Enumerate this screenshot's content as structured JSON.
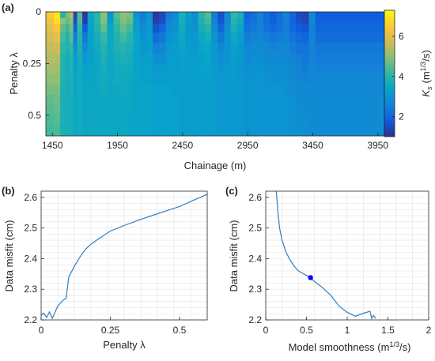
{
  "chart_data": [
    {
      "panel_label": "(a)",
      "type": "heatmap",
      "xlabel": "Chainage (m)",
      "ylabel": "Penalty λ",
      "xlim": [
        1400,
        4000
      ],
      "ylim": [
        0.6,
        0
      ],
      "x_ticks": [
        1450,
        1950,
        2450,
        2950,
        3450,
        3950
      ],
      "y_ticks": [
        0,
        0.25,
        0.5
      ],
      "colorbar": {
        "label": "K_s (m^1/3/s)",
        "label_main": "K",
        "label_sub": "s",
        "label_unit_open": "(m",
        "label_unit_sup": "1/3",
        "label_unit_close": "/s)",
        "ticks": [
          2,
          4,
          6
        ],
        "range": [
          1,
          7.3
        ],
        "colormap": "parula"
      },
      "column_edges": [
        1400,
        1460,
        1510,
        1550,
        1580,
        1610,
        1640,
        1680,
        1720,
        1770,
        1820,
        1870,
        1920,
        1970,
        2020,
        2070,
        2120,
        2170,
        2220,
        2270,
        2320,
        2370,
        2420,
        2470,
        2520,
        2570,
        2620,
        2670,
        2720,
        2770,
        2820,
        2870,
        2920,
        2970,
        3020,
        3070,
        3120,
        3170,
        3220,
        3270,
        3320,
        3370,
        3420,
        3470,
        4000
      ],
      "row_edges": [
        0,
        0.03,
        0.06,
        0.1,
        0.15,
        0.2,
        0.25,
        0.3,
        0.35,
        0.4,
        0.45,
        0.5,
        0.55,
        0.6
      ],
      "values": [
        [
          6.5,
          7.0,
          4.0,
          4.8,
          5.5,
          1.5,
          4.5,
          1.2,
          3.5,
          4.0,
          5.0,
          3.0,
          4.5,
          5.0,
          4.8,
          3.0,
          2.5,
          3.0,
          1.2,
          1.5,
          2.5,
          2.8,
          3.8,
          3.2,
          2.8,
          4.0,
          4.5,
          2.5,
          1.6,
          2.8,
          4.2,
          3.8,
          2.0,
          2.2,
          2.6,
          2.2,
          1.8,
          2.2,
          2.6,
          2.0,
          1.5,
          1.4,
          2.8,
          1.8
        ],
        [
          6.2,
          6.8,
          5.0,
          4.6,
          5.0,
          1.6,
          4.4,
          1.3,
          3.4,
          4.1,
          4.9,
          3.2,
          4.3,
          4.9,
          4.6,
          3.2,
          2.6,
          3.1,
          1.3,
          1.6,
          2.6,
          2.9,
          3.7,
          3.1,
          2.9,
          3.9,
          4.3,
          2.6,
          1.7,
          2.8,
          4.0,
          3.6,
          2.1,
          2.3,
          2.5,
          2.2,
          1.9,
          2.2,
          2.5,
          2.0,
          1.6,
          1.5,
          2.7,
          1.9
        ],
        [
          6.0,
          6.4,
          4.6,
          4.2,
          4.8,
          2.0,
          4.2,
          1.8,
          3.3,
          3.9,
          4.6,
          3.4,
          4.1,
          4.6,
          4.3,
          3.3,
          2.8,
          3.1,
          1.7,
          2.0,
          2.8,
          3.0,
          3.6,
          3.1,
          3.0,
          3.7,
          4.0,
          2.8,
          2.0,
          2.9,
          3.8,
          3.4,
          2.3,
          2.4,
          2.6,
          2.3,
          2.1,
          2.3,
          2.5,
          2.1,
          1.8,
          1.7,
          2.6,
          2.0
        ],
        [
          5.8,
          6.0,
          4.3,
          3.9,
          4.5,
          2.5,
          4.0,
          2.4,
          3.3,
          3.7,
          4.2,
          3.5,
          3.9,
          4.3,
          4.0,
          3.4,
          3.0,
          3.2,
          2.2,
          2.4,
          3.0,
          3.1,
          3.5,
          3.1,
          3.1,
          3.5,
          3.7,
          3.0,
          2.4,
          3.0,
          3.5,
          3.2,
          2.5,
          2.6,
          2.7,
          2.5,
          2.4,
          2.5,
          2.6,
          2.3,
          2.1,
          2.0,
          2.6,
          2.2
        ],
        [
          5.6,
          5.7,
          4.1,
          3.8,
          4.2,
          2.9,
          3.8,
          2.8,
          3.3,
          3.6,
          4.0,
          3.5,
          3.8,
          4.0,
          3.8,
          3.4,
          3.1,
          3.2,
          2.6,
          2.7,
          3.1,
          3.2,
          3.4,
          3.2,
          3.1,
          3.4,
          3.5,
          3.1,
          2.7,
          3.0,
          3.3,
          3.1,
          2.7,
          2.8,
          2.8,
          2.7,
          2.6,
          2.7,
          2.7,
          2.5,
          2.3,
          2.3,
          2.6,
          2.4
        ],
        [
          5.4,
          5.4,
          4.0,
          3.7,
          4.0,
          3.2,
          3.7,
          3.1,
          3.3,
          3.5,
          3.8,
          3.5,
          3.7,
          3.8,
          3.7,
          3.4,
          3.2,
          3.3,
          2.9,
          2.9,
          3.2,
          3.2,
          3.3,
          3.2,
          3.2,
          3.3,
          3.4,
          3.1,
          2.9,
          3.0,
          3.2,
          3.1,
          2.8,
          2.9,
          2.9,
          2.8,
          2.8,
          2.8,
          2.8,
          2.6,
          2.5,
          2.4,
          2.6,
          2.5
        ],
        [
          5.2,
          5.2,
          3.9,
          3.7,
          3.9,
          3.3,
          3.6,
          3.3,
          3.4,
          3.5,
          3.7,
          3.5,
          3.6,
          3.7,
          3.6,
          3.4,
          3.3,
          3.3,
          3.1,
          3.1,
          3.2,
          3.2,
          3.3,
          3.2,
          3.2,
          3.3,
          3.3,
          3.2,
          3.0,
          3.1,
          3.2,
          3.1,
          2.9,
          3.0,
          3.0,
          2.9,
          2.9,
          2.9,
          2.9,
          2.7,
          2.6,
          2.5,
          2.7,
          2.6
        ],
        [
          5.0,
          5.0,
          3.9,
          3.7,
          3.8,
          3.4,
          3.6,
          3.4,
          3.4,
          3.5,
          3.6,
          3.5,
          3.6,
          3.6,
          3.5,
          3.4,
          3.3,
          3.3,
          3.2,
          3.2,
          3.2,
          3.2,
          3.2,
          3.2,
          3.2,
          3.2,
          3.3,
          3.2,
          3.1,
          3.1,
          3.2,
          3.1,
          3.0,
          3.0,
          3.0,
          3.0,
          2.9,
          2.9,
          2.9,
          2.8,
          2.7,
          2.6,
          2.7,
          2.7
        ],
        [
          4.8,
          4.8,
          3.8,
          3.7,
          3.8,
          3.5,
          3.6,
          3.5,
          3.5,
          3.5,
          3.6,
          3.5,
          3.5,
          3.6,
          3.5,
          3.4,
          3.4,
          3.4,
          3.3,
          3.3,
          3.3,
          3.2,
          3.2,
          3.2,
          3.2,
          3.2,
          3.2,
          3.2,
          3.1,
          3.1,
          3.1,
          3.1,
          3.0,
          3.0,
          3.0,
          3.0,
          3.0,
          3.0,
          2.9,
          2.8,
          2.8,
          2.7,
          2.8,
          2.7
        ],
        [
          4.6,
          4.7,
          3.8,
          3.7,
          3.7,
          3.5,
          3.6,
          3.5,
          3.5,
          3.5,
          3.5,
          3.5,
          3.5,
          3.5,
          3.5,
          3.4,
          3.4,
          3.4,
          3.3,
          3.3,
          3.3,
          3.3,
          3.2,
          3.2,
          3.2,
          3.2,
          3.2,
          3.2,
          3.1,
          3.1,
          3.1,
          3.1,
          3.0,
          3.0,
          3.0,
          3.0,
          3.0,
          3.0,
          3.0,
          2.9,
          2.8,
          2.8,
          2.8,
          2.8
        ],
        [
          4.5,
          4.6,
          3.8,
          3.7,
          3.7,
          3.5,
          3.6,
          3.5,
          3.5,
          3.5,
          3.5,
          3.5,
          3.5,
          3.5,
          3.5,
          3.4,
          3.4,
          3.4,
          3.3,
          3.3,
          3.3,
          3.3,
          3.2,
          3.2,
          3.2,
          3.2,
          3.2,
          3.2,
          3.1,
          3.1,
          3.1,
          3.1,
          3.0,
          3.0,
          3.0,
          3.0,
          3.0,
          3.0,
          3.0,
          2.9,
          2.9,
          2.8,
          2.8,
          2.8
        ],
        [
          4.4,
          4.5,
          3.8,
          3.7,
          3.7,
          3.5,
          3.6,
          3.5,
          3.5,
          3.5,
          3.5,
          3.5,
          3.5,
          3.5,
          3.4,
          3.4,
          3.4,
          3.4,
          3.3,
          3.3,
          3.3,
          3.3,
          3.2,
          3.2,
          3.2,
          3.2,
          3.2,
          3.2,
          3.1,
          3.1,
          3.1,
          3.1,
          3.0,
          3.0,
          3.0,
          3.0,
          3.0,
          3.0,
          3.0,
          2.9,
          2.9,
          2.9,
          2.8,
          2.8
        ],
        [
          4.3,
          4.4,
          3.8,
          3.7,
          3.7,
          3.5,
          3.6,
          3.5,
          3.5,
          3.5,
          3.5,
          3.5,
          3.5,
          3.5,
          3.4,
          3.4,
          3.4,
          3.4,
          3.3,
          3.3,
          3.3,
          3.3,
          3.2,
          3.2,
          3.2,
          3.2,
          3.2,
          3.2,
          3.1,
          3.1,
          3.1,
          3.1,
          3.0,
          3.0,
          3.0,
          3.0,
          3.0,
          3.0,
          3.0,
          2.9,
          2.9,
          2.9,
          2.8,
          2.8
        ]
      ]
    },
    {
      "panel_label": "(b)",
      "type": "line",
      "xlabel": "Penalty λ",
      "ylabel": "Data misfit (cm)",
      "xlim": [
        0,
        0.6
      ],
      "ylim": [
        2.2,
        2.62
      ],
      "x_ticks": [
        0,
        0.25,
        0.5
      ],
      "y_ticks": [
        2.2,
        2.3,
        2.4,
        2.5,
        2.6
      ],
      "grid": true,
      "x": [
        0.0,
        0.01,
        0.02,
        0.03,
        0.04,
        0.06,
        0.08,
        0.09,
        0.1,
        0.12,
        0.14,
        0.16,
        0.18,
        0.2,
        0.25,
        0.3,
        0.35,
        0.4,
        0.45,
        0.5,
        0.55,
        0.6
      ],
      "y": [
        2.215,
        2.222,
        2.208,
        2.226,
        2.205,
        2.245,
        2.265,
        2.27,
        2.34,
        2.375,
        2.405,
        2.43,
        2.447,
        2.46,
        2.49,
        2.508,
        2.525,
        2.54,
        2.555,
        2.57,
        2.59,
        2.61
      ]
    },
    {
      "panel_label": "(c)",
      "type": "line",
      "xlabel": "Model smoothness (m^1/3/s)",
      "xlabel_main": "Model smoothness (m",
      "xlabel_sup": "1/3",
      "xlabel_tail": "/s)",
      "ylabel": "Data misfit (cm)",
      "xlim": [
        0,
        2
      ],
      "ylim": [
        2.2,
        2.62
      ],
      "x_ticks": [
        0,
        0.5,
        1,
        1.5,
        2
      ],
      "y_ticks": [
        2.2,
        2.3,
        2.4,
        2.5,
        2.6
      ],
      "grid": true,
      "x": [
        0.13,
        0.15,
        0.17,
        0.2,
        0.25,
        0.3,
        0.35,
        0.4,
        0.5,
        0.55,
        0.6,
        0.7,
        0.8,
        0.9,
        1.0,
        1.1,
        1.2,
        1.28,
        1.3,
        1.32,
        1.35
      ],
      "y": [
        2.62,
        2.55,
        2.5,
        2.46,
        2.42,
        2.395,
        2.375,
        2.36,
        2.345,
        2.338,
        2.325,
        2.305,
        2.28,
        2.245,
        2.225,
        2.212,
        2.222,
        2.228,
        2.205,
        2.215,
        2.205
      ],
      "highlight_point": {
        "x": 0.55,
        "y": 2.338,
        "color": "#0000ff"
      }
    }
  ],
  "colors": {
    "line": "#2f7fc1",
    "axis": "#262626",
    "grid": "#e0e0e0",
    "marker": "#1414c8"
  }
}
